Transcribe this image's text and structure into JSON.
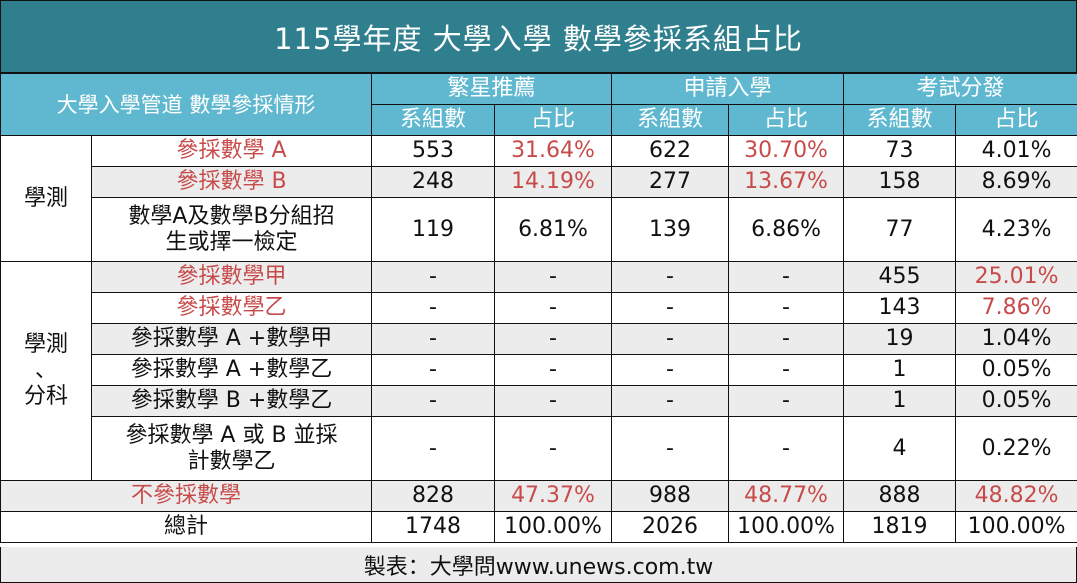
{
  "title": "115學年度 大學入學 數學參採系組占比",
  "header": {
    "corner": "大學入學管道 數學參採情形",
    "groups": [
      "繁星推薦",
      "申請入學",
      "考試分發"
    ],
    "sub": [
      "系組數",
      "占比",
      "系組數",
      "占比",
      "系組數",
      "占比"
    ]
  },
  "section1": {
    "label": "學測",
    "rows": [
      {
        "label": "參採數學 A",
        "cells": [
          "553",
          "31.64%",
          "622",
          "30.70%",
          "73",
          "4.01%"
        ]
      },
      {
        "label": "參採數學 B",
        "cells": [
          "248",
          "14.19%",
          "277",
          "13.67%",
          "158",
          "8.69%"
        ]
      },
      {
        "label": "數學A及數學B分組招生或擇一檢定",
        "cells": [
          "119",
          "6.81%",
          "139",
          "6.86%",
          "77",
          "4.23%"
        ]
      }
    ]
  },
  "section2": {
    "label_line1": "學測",
    "label_line2": "、",
    "label_line3": "分科",
    "rows": [
      {
        "label": "參採數學甲",
        "cells": [
          "-",
          "-",
          "-",
          "-",
          "455",
          "25.01%"
        ]
      },
      {
        "label": "參採數學乙",
        "cells": [
          "-",
          "-",
          "-",
          "-",
          "143",
          "7.86%"
        ]
      },
      {
        "label": "參採數學 A +數學甲",
        "cells": [
          "-",
          "-",
          "-",
          "-",
          "19",
          "1.04%"
        ]
      },
      {
        "label": "參採數學 A +數學乙",
        "cells": [
          "-",
          "-",
          "-",
          "-",
          "1",
          "0.05%"
        ]
      },
      {
        "label": "參採數學 B +數學乙",
        "cells": [
          "-",
          "-",
          "-",
          "-",
          "1",
          "0.05%"
        ]
      },
      {
        "label": "參採數學 A 或 B 並採計數學乙",
        "cells": [
          "-",
          "-",
          "-",
          "-",
          "4",
          "0.22%"
        ]
      }
    ]
  },
  "no_math": {
    "label": "不參採數學",
    "cells": [
      "828",
      "47.37%",
      "988",
      "48.77%",
      "888",
      "48.82%"
    ]
  },
  "total": {
    "label": "總計",
    "cells": [
      "1748",
      "100.00%",
      "2026",
      "100.00%",
      "1819",
      "100.00%"
    ]
  },
  "footer": "製表：大學問www.unews.com.tw",
  "colors": {
    "title_bg": "#2f7f8e",
    "header_bg": "#5fb8cf",
    "accent_red": "#c84b4b",
    "row_gray": "#ececec"
  }
}
